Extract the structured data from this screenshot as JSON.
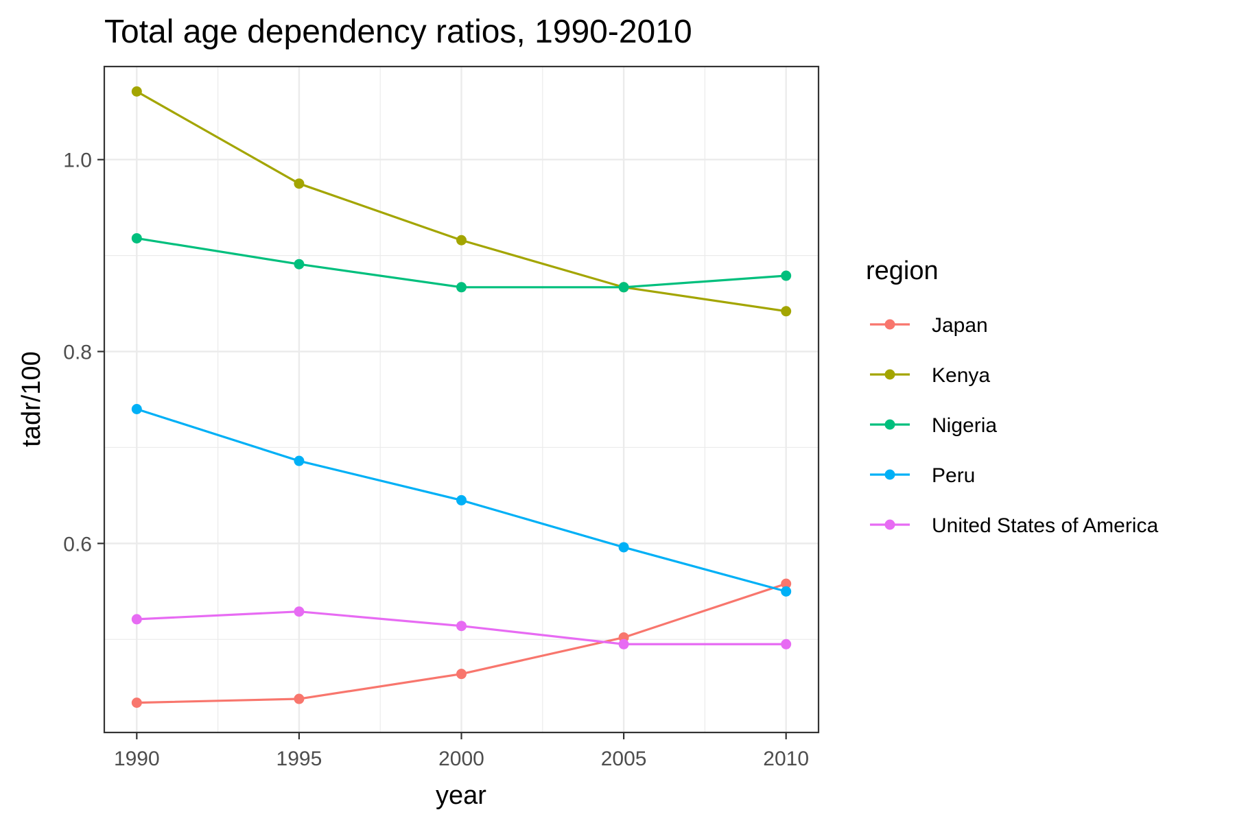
{
  "chart_data": {
    "type": "line",
    "title": "Total age dependency ratios, 1990-2010",
    "xlabel": "year",
    "ylabel": "tadr/100",
    "x": [
      1990,
      1995,
      2000,
      2005,
      2010
    ],
    "xticks": [
      "1990",
      "1995",
      "2000",
      "2005",
      "2010"
    ],
    "xlim": [
      1989,
      2011
    ],
    "yticks": [
      0.6,
      0.8,
      1.0
    ],
    "ytick_labels": [
      "0.6",
      "0.8",
      "1.0"
    ],
    "ylim": [
      0.403,
      1.097
    ],
    "grid": true,
    "legend_title": "region",
    "legend_position": "right",
    "series": [
      {
        "name": "Japan",
        "color": "#F8766D",
        "values": [
          0.434,
          0.438,
          0.464,
          0.502,
          0.558
        ]
      },
      {
        "name": "Kenya",
        "color": "#A3A500",
        "values": [
          1.071,
          0.975,
          0.916,
          0.867,
          0.842
        ]
      },
      {
        "name": "Nigeria",
        "color": "#00BF7D",
        "values": [
          0.918,
          0.891,
          0.867,
          0.867,
          0.879
        ]
      },
      {
        "name": "Peru",
        "color": "#00B0F6",
        "values": [
          0.74,
          0.686,
          0.645,
          0.596,
          0.55
        ]
      },
      {
        "name": "United States of America",
        "color": "#E76BF3",
        "values": [
          0.521,
          0.529,
          0.514,
          0.495,
          0.495
        ]
      }
    ]
  }
}
